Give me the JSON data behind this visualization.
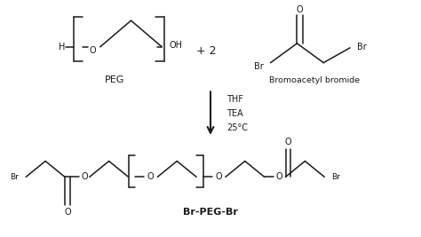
{
  "bg_color": "#ffffff",
  "line_color": "#1a1a1a",
  "text_color": "#1a1a1a",
  "figsize": [
    4.74,
    2.67
  ],
  "dpi": 100,
  "reaction_conditions": [
    "THF",
    "TEA",
    "25°C"
  ],
  "plus_text": "+ 2",
  "peg_label": "PEG",
  "bromoacetyl_label": "Bromoacetyl bromide",
  "product_label": "Br-PEG-Br"
}
